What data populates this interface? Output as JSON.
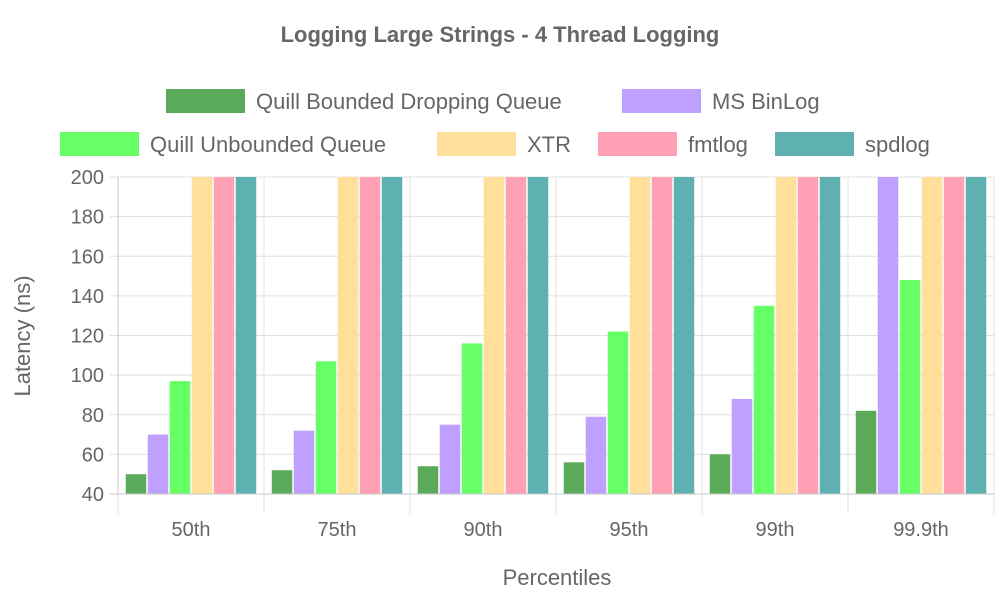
{
  "chart_data": {
    "type": "bar",
    "title": "Logging Large Strings - 4 Thread Logging",
    "xlabel": "Percentiles",
    "ylabel": "Latency (ns)",
    "ylim": [
      40,
      200
    ],
    "yticks": [
      40,
      60,
      80,
      100,
      120,
      140,
      160,
      180,
      200
    ],
    "legend_position": "top",
    "categories": [
      "50th",
      "75th",
      "90th",
      "95th",
      "99th",
      "99.9th"
    ],
    "series": [
      {
        "name": "Quill Bounded Dropping Queue",
        "color": "#5aaa5a",
        "values": [
          50,
          52,
          54,
          56,
          60,
          82
        ]
      },
      {
        "name": "MS BinLog",
        "color": "#c0a0ff",
        "values": [
          70,
          72,
          75,
          79,
          88,
          200
        ]
      },
      {
        "name": "Quill Unbounded Queue",
        "color": "#66ff66",
        "values": [
          97,
          107,
          116,
          122,
          135,
          148
        ]
      },
      {
        "name": "XTR",
        "color": "#ffdf99",
        "values": [
          200,
          200,
          200,
          200,
          200,
          200
        ]
      },
      {
        "name": "fmtlog",
        "color": "#ffa0b4",
        "values": [
          200,
          200,
          200,
          200,
          200,
          200
        ]
      },
      {
        "name": "spdlog",
        "color": "#5fb0b0",
        "values": [
          200,
          200,
          200,
          200,
          200,
          200
        ]
      }
    ]
  }
}
